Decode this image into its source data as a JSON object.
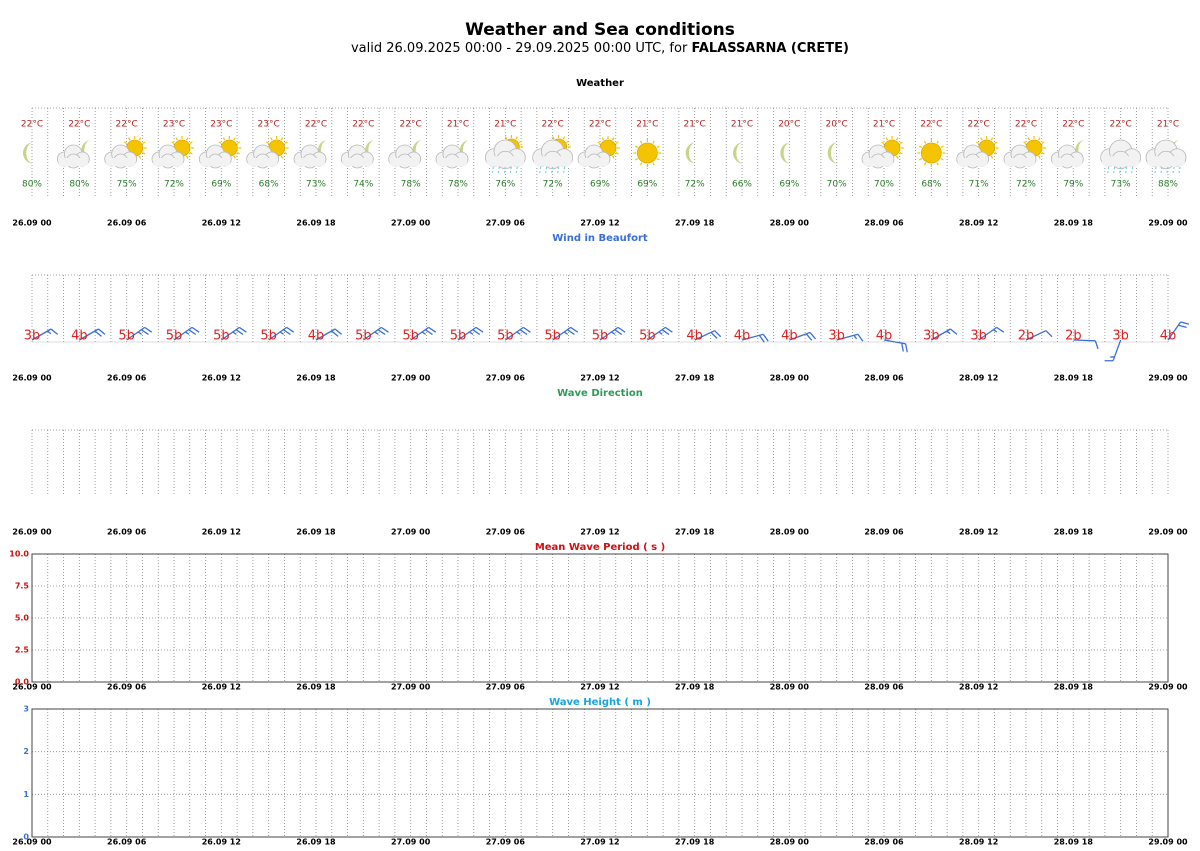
{
  "title": "Weather and Sea conditions",
  "subtitle": "valid 26.09.2025 00:00 - 29.09.2025 00:00 UTC, for",
  "location": "FALASSARNA (CRETE)",
  "chart_data": [
    {
      "type": "weather",
      "title": "Weather",
      "title_color": "#000000",
      "xticks": [
        "26.09 00",
        "26.09 06",
        "26.09 12",
        "26.09 18",
        "27.09 00",
        "27.09 06",
        "27.09 12",
        "27.09 18",
        "28.09 00",
        "28.09 06",
        "28.09 12",
        "28.09 18",
        "29.09 00"
      ],
      "icons": [
        "moon",
        "cloud-moon",
        "cloud-sun",
        "cloud-sun",
        "cloud-sun",
        "cloud-sun",
        "cloud-moon",
        "cloud-moon",
        "cloud-moon",
        "cloud-moon",
        "rain-sun",
        "rain-sun",
        "cloud-sun",
        "sun",
        "moon",
        "moon",
        "moon",
        "moon",
        "cloud-sun",
        "sun",
        "cloud-sun",
        "cloud-sun",
        "cloud-moon",
        "rain",
        "rain-moon"
      ],
      "temperature": {
        "color": "#b22222",
        "values": [
          22,
          22,
          22,
          23,
          23,
          23,
          22,
          22,
          22,
          21,
          21,
          22,
          22,
          21,
          21,
          21,
          20,
          20,
          21,
          22,
          22,
          22,
          22,
          22,
          21
        ],
        "value_labels": [
          "22°C",
          "22°C",
          "22°C",
          "23°C",
          "23°C",
          "23°C",
          "22°C",
          "22°C",
          "22°C",
          "21°C",
          "21°C",
          "22°C",
          "22°C",
          "21°C",
          "21°C",
          "21°C",
          "20°C",
          "20°C",
          "21°C",
          "22°C",
          "22°C",
          "22°C",
          "22°C",
          "22°C",
          "21°C"
        ]
      },
      "humidity": {
        "color": "#2a7a2a",
        "values": [
          80,
          80,
          75,
          72,
          69,
          68,
          73,
          74,
          78,
          78,
          76,
          72,
          69,
          69,
          72,
          66,
          69,
          70,
          70,
          68,
          71,
          72,
          79,
          73,
          88
        ],
        "value_labels": [
          "80%",
          "80%",
          "75%",
          "72%",
          "69%",
          "68%",
          "73%",
          "74%",
          "78%",
          "78%",
          "76%",
          "72%",
          "69%",
          "69%",
          "72%",
          "66%",
          "69%",
          "70%",
          "70%",
          "68%",
          "71%",
          "72%",
          "79%",
          "73%",
          "88%"
        ]
      }
    },
    {
      "type": "barb",
      "title": "Wind in Beaufort",
      "title_color": "#3a6fd8",
      "color": "#3a6fd8",
      "label_color": "#e02020",
      "xticks": [
        "26.09 00",
        "26.09 06",
        "26.09 12",
        "26.09 18",
        "27.09 00",
        "27.09 06",
        "27.09 12",
        "27.09 18",
        "28.09 00",
        "28.09 06",
        "28.09 12",
        "28.09 18",
        "29.09 00"
      ],
      "values": [
        3,
        4,
        5,
        5,
        5,
        5,
        4,
        5,
        5,
        5,
        5,
        5,
        5,
        5,
        4,
        4,
        4,
        3,
        4,
        3,
        3,
        2,
        2,
        3,
        4
      ],
      "value_labels": [
        "3b",
        "4b",
        "5b",
        "5b",
        "5b",
        "5b",
        "4b",
        "5b",
        "5b",
        "5b",
        "5b",
        "5b",
        "5b",
        "5b",
        "4b",
        "4b",
        "4b",
        "3b",
        "4b",
        "3b",
        "3b",
        "2b",
        "2b",
        "3b",
        "4b"
      ],
      "directions": [
        60,
        60,
        55,
        55,
        55,
        55,
        60,
        55,
        55,
        55,
        55,
        55,
        55,
        55,
        65,
        75,
        70,
        75,
        100,
        60,
        55,
        65,
        92,
        200,
        35
      ]
    },
    {
      "type": "arrow",
      "title": "Wave Direction",
      "title_color": "#2e9a5a",
      "xticks": [
        "26.09 00",
        "26.09 06",
        "26.09 12",
        "26.09 18",
        "27.09 00",
        "27.09 06",
        "27.09 12",
        "27.09 18",
        "28.09 00",
        "28.09 06",
        "28.09 12",
        "28.09 18",
        "29.09 00"
      ]
    },
    {
      "type": "line",
      "title": "Mean Wave Period ( s )",
      "title_color": "#d01010",
      "tick_color": "#d01010",
      "xticks": [
        "26.09 00",
        "26.09 06",
        "26.09 12",
        "26.09 18",
        "27.09 00",
        "27.09 06",
        "27.09 12",
        "27.09 18",
        "28.09 00",
        "28.09 06",
        "28.09 12",
        "28.09 18",
        "29.09 00"
      ],
      "ylim": [
        0,
        10
      ],
      "yticks": [
        {
          "value": 0,
          "label": "0.0"
        },
        {
          "value": 2.5,
          "label": "2.5"
        },
        {
          "value": 5,
          "label": "5.0"
        },
        {
          "value": 7.5,
          "label": "7.5"
        },
        {
          "value": 10,
          "label": "10.0"
        }
      ],
      "grid": true
    },
    {
      "type": "line",
      "title": "Wave Height ( m )",
      "title_color": "#1aa3e0",
      "tick_color": "#3a6fd8",
      "xticks": [
        "26.09 00",
        "26.09 06",
        "26.09 12",
        "26.09 18",
        "27.09 00",
        "27.09 06",
        "27.09 12",
        "27.09 18",
        "28.09 00",
        "28.09 06",
        "28.09 12",
        "28.09 18",
        "29.09 00"
      ],
      "ylim": [
        0,
        3
      ],
      "yticks": [
        0,
        1,
        2,
        3
      ],
      "grid": true
    }
  ]
}
